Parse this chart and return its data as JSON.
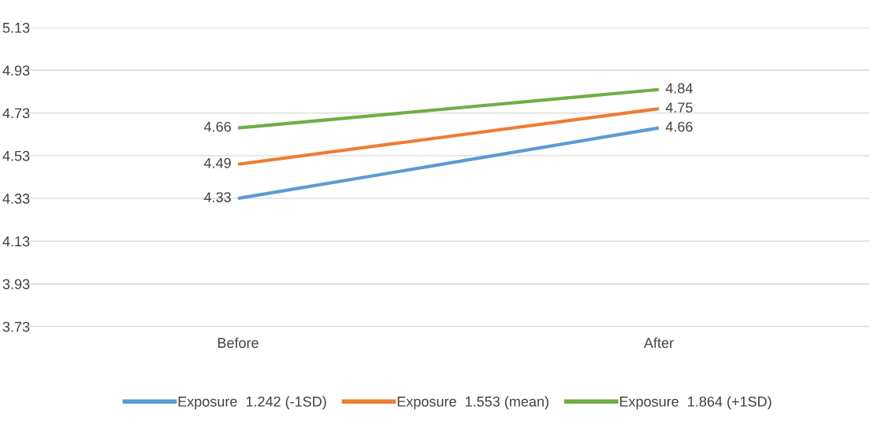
{
  "chart_data": {
    "type": "line",
    "categories": [
      "Before",
      "After"
    ],
    "series": [
      {
        "name": "Exposure  1.242 (-1SD)",
        "color": "#5b9bd5",
        "values": [
          4.33,
          4.66
        ]
      },
      {
        "name": "Exposure  1.553 (mean)",
        "color": "#ed7d31",
        "values": [
          4.49,
          4.75
        ]
      },
      {
        "name": "Exposure  1.864 (+1SD)",
        "color": "#70ad47",
        "values": [
          4.66,
          4.84
        ]
      }
    ],
    "ylim": [
      3.73,
      5.13
    ],
    "yticks": [
      "3.73",
      "3.93",
      "4.13",
      "4.33",
      "4.53",
      "4.73",
      "4.93",
      "5.13"
    ],
    "grid": "y",
    "legend": "bottom",
    "data_labels": true,
    "marker": "none",
    "line_style": "solid"
  }
}
